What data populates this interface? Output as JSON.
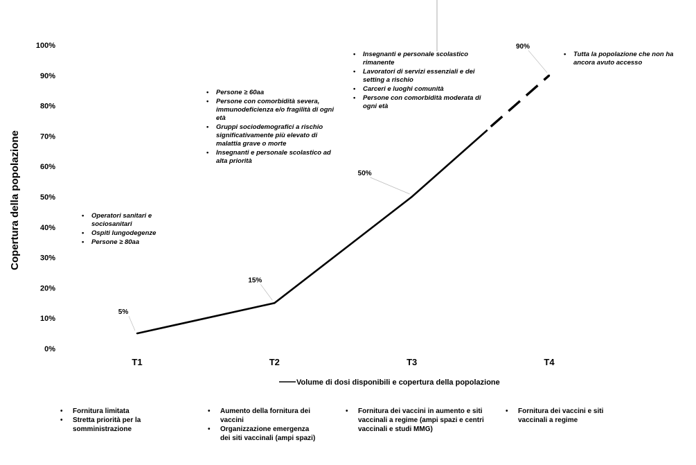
{
  "chart_data": {
    "type": "line",
    "title": "",
    "xlabel": "",
    "ylabel": "Copertura della popolazione",
    "categories": [
      "T1",
      "T2",
      "T3",
      "T4"
    ],
    "ylim": [
      0,
      100
    ],
    "yticks": [
      "0%",
      "10%",
      "20%",
      "30%",
      "40%",
      "50%",
      "60%",
      "70%",
      "80%",
      "90%",
      "100%"
    ],
    "series": [
      {
        "name": "Volume di dosi disponibili e copertura della popolazione",
        "values": [
          5,
          15,
          50,
          90
        ],
        "data_labels": [
          "5%",
          "15%",
          "50%",
          "90%"
        ],
        "dashed_final_segment": true
      }
    ],
    "legend": "bottom",
    "grid": false
  },
  "annotations": [
    {
      "items": [
        "Operatori sanitari e sociosanitari",
        "Ospiti lungodegenze",
        "Persone ≥ 80aa"
      ]
    },
    {
      "items": [
        "Persone ≥ 60aa",
        "Persone con comorbidità severa, immunodeficienza e/o fragilità di ogni età",
        "Gruppi sociodemografici a rischio significativamente più elevato di malattia grave o morte",
        "Insegnanti e personale scolastico ad alta priorità"
      ]
    },
    {
      "items": [
        "Insegnanti e personale scolastico rimanente",
        "Lavoratori di servizi essenziali e dei setting a rischio",
        "Carceri e luoghi comunità",
        "Persone con comorbidità moderata di ogni età"
      ]
    },
    {
      "items": [
        "Tutta la popolazione che non ha ancora avuto accesso"
      ]
    }
  ],
  "phases": [
    {
      "items": [
        "Fornitura limitata",
        "Stretta priorità per la somministrazione"
      ]
    },
    {
      "items": [
        "Aumento della fornitura dei vaccini",
        "Organizzazione emergenza dei siti vaccinali (ampi spazi)"
      ]
    },
    {
      "items": [
        "Fornitura dei vaccini in aumento e siti vaccinali a regime (ampi spazi e centri vaccinali e studi MMG)"
      ]
    },
    {
      "items": [
        "Fornitura dei vaccini e siti vaccinali a regime"
      ]
    }
  ],
  "colors": {
    "line": "#000000",
    "text": "#000000",
    "background": "#ffffff"
  }
}
